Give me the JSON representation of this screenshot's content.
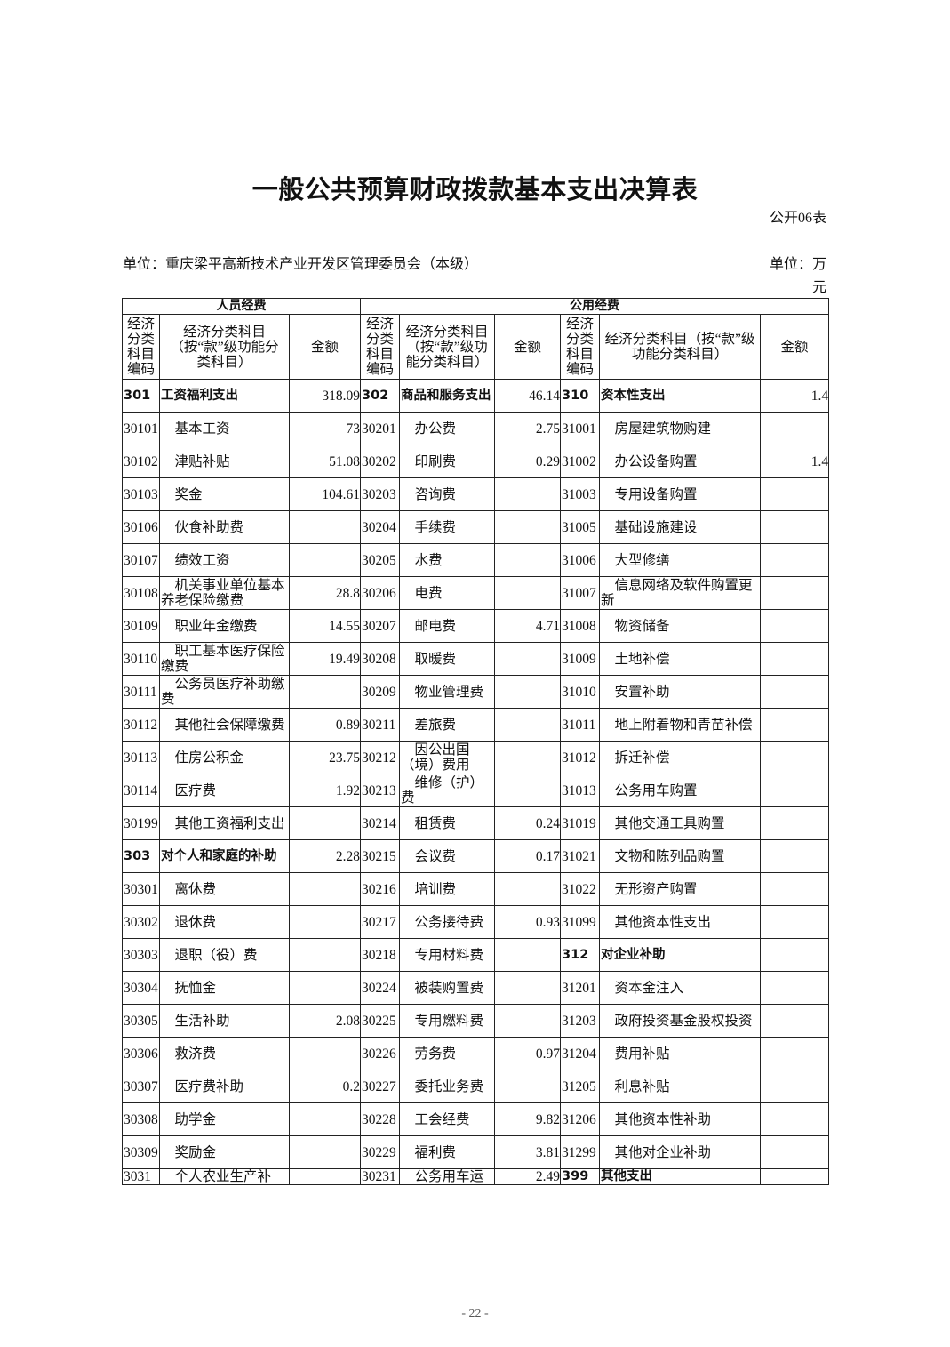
{
  "title": "一般公共预算财政拨款基本支出决算表",
  "table_no": "公开06表",
  "unit_org": "单位：重庆梁平高新技术产业开发区管理委员会（本级）",
  "unit_money": "单位：万元",
  "groups": [
    "人员经费",
    "公用经费"
  ],
  "headers": {
    "code": "经济分类科目编码",
    "name_left": "经济分类科目（按“款”级功能分类科目）",
    "name_mid": "经济分类科目（按“款”级功能分类科目）",
    "name_right": "经济分类科目（按“款”级功能分类科目）",
    "amount": "金额"
  },
  "rows": [
    [
      {
        "code": "301",
        "name": "工资福利支出",
        "amount": "318.09",
        "bold": true
      },
      {
        "code": "302",
        "name": "商品和服务支出",
        "amount": "46.14",
        "bold": true
      },
      {
        "code": "310",
        "name": "资本性支出",
        "amount": "1.4",
        "bold": true
      }
    ],
    [
      {
        "code": "30101",
        "name": "基本工资",
        "amount": "73"
      },
      {
        "code": "30201",
        "name": "办公费",
        "amount": "2.75"
      },
      {
        "code": "31001",
        "name": "房屋建筑物购建",
        "amount": ""
      }
    ],
    [
      {
        "code": "30102",
        "name": "津贴补贴",
        "amount": "51.08"
      },
      {
        "code": "30202",
        "name": "印刷费",
        "amount": "0.29"
      },
      {
        "code": "31002",
        "name": "办公设备购置",
        "amount": "1.4"
      }
    ],
    [
      {
        "code": "30103",
        "name": "奖金",
        "amount": "104.61"
      },
      {
        "code": "30203",
        "name": "咨询费",
        "amount": ""
      },
      {
        "code": "31003",
        "name": "专用设备购置",
        "amount": ""
      }
    ],
    [
      {
        "code": "30106",
        "name": "伙食补助费",
        "amount": ""
      },
      {
        "code": "30204",
        "name": "手续费",
        "amount": ""
      },
      {
        "code": "31005",
        "name": "基础设施建设",
        "amount": ""
      }
    ],
    [
      {
        "code": "30107",
        "name": "绩效工资",
        "amount": ""
      },
      {
        "code": "30205",
        "name": "水费",
        "amount": ""
      },
      {
        "code": "31006",
        "name": "大型修缮",
        "amount": ""
      }
    ],
    [
      {
        "code": "30108",
        "name": "机关事业单位基本养老保险缴费",
        "amount": "28.8"
      },
      {
        "code": "30206",
        "name": "电费",
        "amount": ""
      },
      {
        "code": "31007",
        "name": "信息网络及软件购置更新",
        "amount": ""
      }
    ],
    [
      {
        "code": "30109",
        "name": "职业年金缴费",
        "amount": "14.55"
      },
      {
        "code": "30207",
        "name": "邮电费",
        "amount": "4.71"
      },
      {
        "code": "31008",
        "name": "物资储备",
        "amount": ""
      }
    ],
    [
      {
        "code": "30110",
        "name": "职工基本医疗保险缴费",
        "amount": "19.49"
      },
      {
        "code": "30208",
        "name": "取暖费",
        "amount": ""
      },
      {
        "code": "31009",
        "name": "土地补偿",
        "amount": ""
      }
    ],
    [
      {
        "code": "30111",
        "name": "公务员医疗补助缴费",
        "amount": ""
      },
      {
        "code": "30209",
        "name": "物业管理费",
        "amount": ""
      },
      {
        "code": "31010",
        "name": "安置补助",
        "amount": ""
      }
    ],
    [
      {
        "code": "30112",
        "name": "其他社会保障缴费",
        "amount": "0.89"
      },
      {
        "code": "30211",
        "name": "差旅费",
        "amount": ""
      },
      {
        "code": "31011",
        "name": "地上附着物和青苗补偿",
        "amount": ""
      }
    ],
    [
      {
        "code": "30113",
        "name": "住房公积金",
        "amount": "23.75"
      },
      {
        "code": "30212",
        "name": "因公出国（境）费用",
        "amount": ""
      },
      {
        "code": "31012",
        "name": "拆迁补偿",
        "amount": ""
      }
    ],
    [
      {
        "code": "30114",
        "name": "医疗费",
        "amount": "1.92"
      },
      {
        "code": "30213",
        "name": "维修（护）费",
        "amount": ""
      },
      {
        "code": "31013",
        "name": "公务用车购置",
        "amount": ""
      }
    ],
    [
      {
        "code": "30199",
        "name": "其他工资福利支出",
        "amount": ""
      },
      {
        "code": "30214",
        "name": "租赁费",
        "amount": "0.24"
      },
      {
        "code": "31019",
        "name": "其他交通工具购置",
        "amount": ""
      }
    ],
    [
      {
        "code": "303",
        "name": "对个人和家庭的补助",
        "amount": "2.28",
        "bold": true
      },
      {
        "code": "30215",
        "name": "会议费",
        "amount": "0.17"
      },
      {
        "code": "31021",
        "name": "文物和陈列品购置",
        "amount": ""
      }
    ],
    [
      {
        "code": "30301",
        "name": "离休费",
        "amount": ""
      },
      {
        "code": "30216",
        "name": "培训费",
        "amount": ""
      },
      {
        "code": "31022",
        "name": "无形资产购置",
        "amount": ""
      }
    ],
    [
      {
        "code": "30302",
        "name": "退休费",
        "amount": ""
      },
      {
        "code": "30217",
        "name": "公务接待费",
        "amount": "0.93"
      },
      {
        "code": "31099",
        "name": "其他资本性支出",
        "amount": ""
      }
    ],
    [
      {
        "code": "30303",
        "name": "退职（役）费",
        "amount": ""
      },
      {
        "code": "30218",
        "name": "专用材料费",
        "amount": ""
      },
      {
        "code": "312",
        "name": "对企业补助",
        "amount": "",
        "bold": true
      }
    ],
    [
      {
        "code": "30304",
        "name": "抚恤金",
        "amount": ""
      },
      {
        "code": "30224",
        "name": "被装购置费",
        "amount": ""
      },
      {
        "code": "31201",
        "name": "资本金注入",
        "amount": ""
      }
    ],
    [
      {
        "code": "30305",
        "name": "生活补助",
        "amount": "2.08"
      },
      {
        "code": "30225",
        "name": "专用燃料费",
        "amount": ""
      },
      {
        "code": "31203",
        "name": "政府投资基金股权投资",
        "amount": ""
      }
    ],
    [
      {
        "code": "30306",
        "name": "救济费",
        "amount": ""
      },
      {
        "code": "30226",
        "name": "劳务费",
        "amount": "0.97"
      },
      {
        "code": "31204",
        "name": "费用补贴",
        "amount": ""
      }
    ],
    [
      {
        "code": "30307",
        "name": "医疗费补助",
        "amount": "0.2"
      },
      {
        "code": "30227",
        "name": "委托业务费",
        "amount": ""
      },
      {
        "code": "31205",
        "name": "利息补贴",
        "amount": ""
      }
    ],
    [
      {
        "code": "30308",
        "name": "助学金",
        "amount": ""
      },
      {
        "code": "30228",
        "name": "工会经费",
        "amount": "9.82"
      },
      {
        "code": "31206",
        "name": "其他资本性补助",
        "amount": ""
      }
    ],
    [
      {
        "code": "30309",
        "name": "奖励金",
        "amount": ""
      },
      {
        "code": "30229",
        "name": "福利费",
        "amount": "3.81"
      },
      {
        "code": "31299",
        "name": "其他对企业补助",
        "amount": ""
      }
    ],
    [
      {
        "code": "3031",
        "name": "个人农业生产补",
        "amount": ""
      },
      {
        "code": "30231",
        "name": "公务用车运",
        "amount": "2.49"
      },
      {
        "code": "399",
        "name": "其他支出",
        "amount": "",
        "bold": true
      }
    ]
  ],
  "page_number": "- 22 -"
}
